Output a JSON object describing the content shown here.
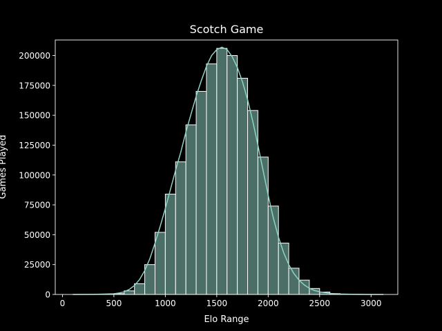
{
  "chart_data": {
    "type": "bar",
    "title": "Scotch Game",
    "xlabel": "Elo Range",
    "ylabel": "Games Played",
    "xlim": [
      -70,
      3260
    ],
    "ylim": [
      0,
      213000
    ],
    "xticks": [
      0,
      500,
      1000,
      1500,
      2000,
      2500,
      3000
    ],
    "yticks": [
      0,
      25000,
      50000,
      75000,
      100000,
      125000,
      150000,
      175000,
      200000
    ],
    "bin_width": 100,
    "grid": false,
    "legend": "none",
    "bins": [
      {
        "x0": 100,
        "x1": 200,
        "value": 0
      },
      {
        "x0": 200,
        "x1": 300,
        "value": 0
      },
      {
        "x0": 300,
        "x1": 400,
        "value": 100
      },
      {
        "x0": 400,
        "x1": 500,
        "value": 200
      },
      {
        "x0": 500,
        "x1": 600,
        "value": 700
      },
      {
        "x0": 600,
        "x1": 700,
        "value": 3000
      },
      {
        "x0": 700,
        "x1": 800,
        "value": 9000
      },
      {
        "x0": 800,
        "x1": 900,
        "value": 25000
      },
      {
        "x0": 900,
        "x1": 1000,
        "value": 52000
      },
      {
        "x0": 1000,
        "x1": 1100,
        "value": 84000
      },
      {
        "x0": 1100,
        "x1": 1200,
        "value": 111000
      },
      {
        "x0": 1200,
        "x1": 1300,
        "value": 142000
      },
      {
        "x0": 1300,
        "x1": 1400,
        "value": 170000
      },
      {
        "x0": 1400,
        "x1": 1500,
        "value": 193000
      },
      {
        "x0": 1500,
        "x1": 1600,
        "value": 206000
      },
      {
        "x0": 1600,
        "x1": 1700,
        "value": 200000
      },
      {
        "x0": 1700,
        "x1": 1800,
        "value": 181000
      },
      {
        "x0": 1800,
        "x1": 1900,
        "value": 154000
      },
      {
        "x0": 1900,
        "x1": 2000,
        "value": 115000
      },
      {
        "x0": 2000,
        "x1": 2100,
        "value": 74000
      },
      {
        "x0": 2100,
        "x1": 2200,
        "value": 43000
      },
      {
        "x0": 2200,
        "x1": 2300,
        "value": 22000
      },
      {
        "x0": 2300,
        "x1": 2400,
        "value": 12000
      },
      {
        "x0": 2400,
        "x1": 2500,
        "value": 5000
      },
      {
        "x0": 2500,
        "x1": 2600,
        "value": 2000
      },
      {
        "x0": 2600,
        "x1": 2700,
        "value": 700
      },
      {
        "x0": 2700,
        "x1": 2800,
        "value": 300
      },
      {
        "x0": 2800,
        "x1": 2900,
        "value": 100
      },
      {
        "x0": 2900,
        "x1": 3000,
        "value": 0
      },
      {
        "x0": 3000,
        "x1": 3100,
        "value": 0
      }
    ],
    "kde": {
      "x": [
        100,
        300,
        400,
        500,
        550,
        600,
        650,
        700,
        750,
        800,
        850,
        900,
        950,
        1000,
        1050,
        1100,
        1150,
        1200,
        1250,
        1300,
        1350,
        1400,
        1450,
        1500,
        1550,
        1600,
        1650,
        1700,
        1750,
        1800,
        1850,
        1900,
        1950,
        2000,
        2050,
        2100,
        2150,
        2200,
        2250,
        2300,
        2350,
        2400,
        2450,
        2500,
        2600,
        2700,
        2800,
        2900,
        3000,
        3120
      ],
      "y": [
        0,
        100,
        300,
        600,
        1200,
        2200,
        4200,
        7500,
        12500,
        20000,
        30000,
        43000,
        57000,
        72000,
        88000,
        104000,
        119000,
        136000,
        151000,
        166000,
        179000,
        191000,
        200000,
        205000,
        207000,
        205000,
        199000,
        190000,
        178000,
        163000,
        145000,
        125000,
        104000,
        83000,
        64000,
        48000,
        35000,
        25000,
        17500,
        12000,
        8000,
        5200,
        3300,
        2200,
        900,
        350,
        130,
        50,
        15,
        0
      ]
    },
    "colors": {
      "background": "#000000",
      "bar_fill": "#4b6f66",
      "bar_edge": "#ffffff",
      "kde_line": "#8dd3c7",
      "axis": "#ffffff",
      "text": "#ffffff"
    }
  }
}
